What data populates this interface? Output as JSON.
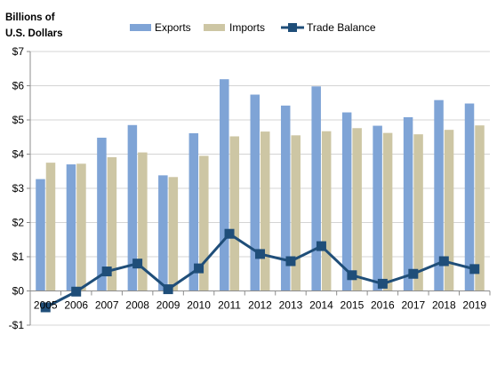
{
  "chart_data": {
    "type": "bar",
    "ylabel_lines": [
      "Billions of",
      "U.S. Dollars"
    ],
    "categories": [
      "2005",
      "2006",
      "2007",
      "2008",
      "2009",
      "2010",
      "2011",
      "2012",
      "2013",
      "2014",
      "2015",
      "2016",
      "2017",
      "2018",
      "2019"
    ],
    "series": [
      {
        "name": "Exports",
        "type": "bar",
        "color": "#7fa4d6",
        "values": [
          3.27,
          3.7,
          4.48,
          4.85,
          3.38,
          4.61,
          6.19,
          5.74,
          5.42,
          5.98,
          5.22,
          4.83,
          5.08,
          5.58,
          5.48
        ]
      },
      {
        "name": "Imports",
        "type": "bar",
        "color": "#cdc6a4",
        "values": [
          3.75,
          3.72,
          3.91,
          4.05,
          3.33,
          3.95,
          4.52,
          4.66,
          4.55,
          4.67,
          4.76,
          4.62,
          4.58,
          4.71,
          4.84
        ]
      },
      {
        "name": "Trade Balance",
        "type": "line",
        "color": "#1f4e79",
        "values": [
          -0.48,
          -0.02,
          0.57,
          0.8,
          0.05,
          0.66,
          1.67,
          1.08,
          0.87,
          1.31,
          0.46,
          0.21,
          0.5,
          0.87,
          0.64
        ]
      }
    ],
    "yticks": [
      {
        "value": -1,
        "label": "-$1"
      },
      {
        "value": 0,
        "label": "$0"
      },
      {
        "value": 1,
        "label": "$1"
      },
      {
        "value": 2,
        "label": "$2"
      },
      {
        "value": 3,
        "label": "$3"
      },
      {
        "value": 4,
        "label": "$4"
      },
      {
        "value": 5,
        "label": "$5"
      },
      {
        "value": 6,
        "label": "$6"
      },
      {
        "value": 7,
        "label": "$7"
      }
    ],
    "ylim": [
      -1,
      7
    ],
    "grid": true,
    "legend_position": "top"
  }
}
